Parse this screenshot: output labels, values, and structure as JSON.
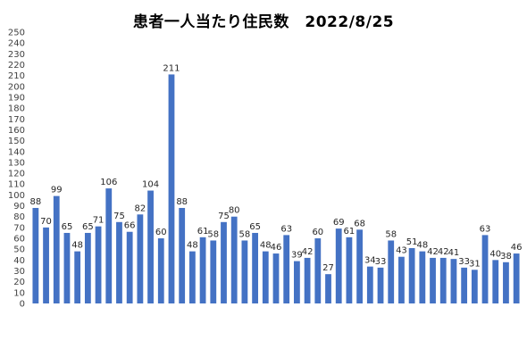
{
  "chart_data": {
    "type": "bar",
    "title": "患者一人当たり住民数　2022/8/25",
    "xlabel": "",
    "ylabel": "",
    "ylim": [
      0,
      250
    ],
    "ytick_step": 10,
    "grid": false,
    "legend": "none",
    "bar_color": "#4472C4",
    "categories": [
      "",
      "",
      "",
      "",
      "",
      "",
      "",
      "",
      "",
      "",
      "",
      "",
      "",
      "",
      "",
      "",
      "",
      "",
      "",
      "",
      "",
      "",
      "",
      "",
      "",
      "",
      "",
      "",
      "",
      "",
      "",
      "",
      "",
      "",
      "",
      "",
      "",
      "",
      "",
      "",
      "",
      "",
      "",
      "",
      "",
      "",
      ""
    ],
    "values": [
      88,
      70,
      99,
      65,
      48,
      65,
      71,
      106,
      75,
      66,
      82,
      104,
      60,
      211,
      88,
      48,
      61,
      58,
      75,
      80,
      58,
      65,
      48,
      46,
      63,
      39,
      42,
      60,
      27,
      69,
      61,
      68,
      34,
      33,
      58,
      43,
      51,
      48,
      42,
      42,
      41,
      33,
      31,
      63,
      40,
      38,
      46
    ]
  }
}
